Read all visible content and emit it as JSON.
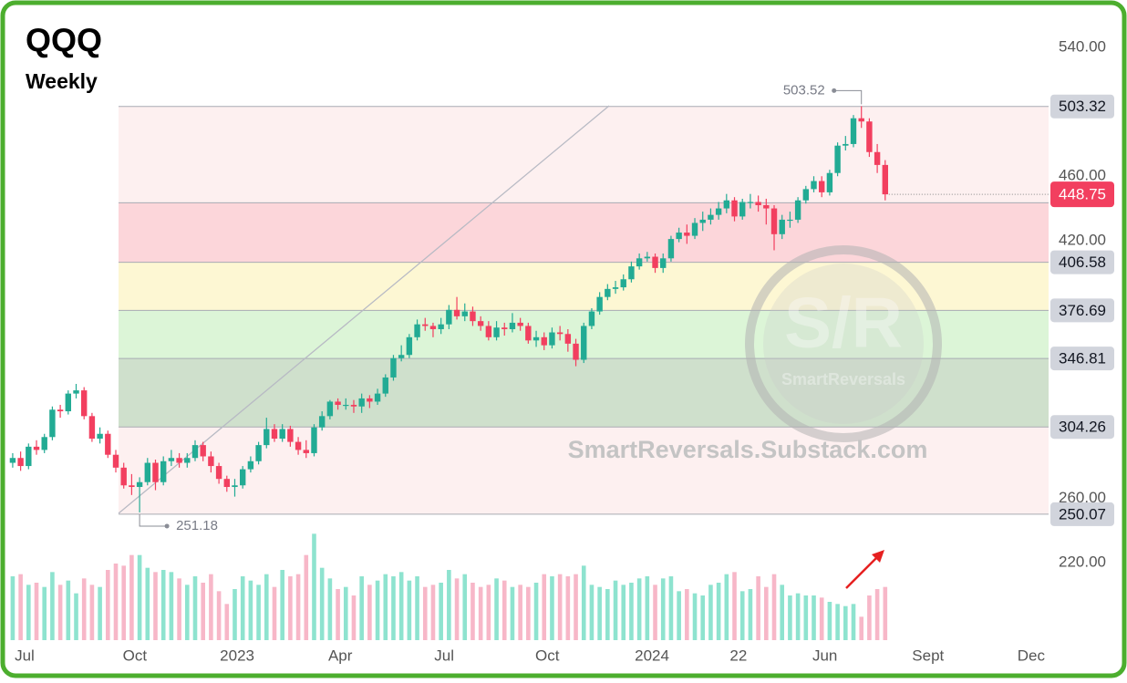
{
  "chart_data": {
    "type": "candlestick",
    "title": "QQQ",
    "subtitle": "Weekly",
    "watermark": {
      "logo": "S/R",
      "name": "SmartReversals",
      "site": "SmartReversals.Substack.com"
    },
    "open": [
      282,
      285,
      280,
      292,
      290,
      298,
      315,
      314,
      325,
      327,
      311,
      297,
      300,
      287,
      279,
      268,
      267,
      270,
      282,
      270,
      283,
      285,
      282,
      285,
      293,
      286,
      280,
      272,
      267,
      268,
      278,
      283,
      293,
      303,
      297,
      303,
      295,
      290,
      288,
      304,
      311,
      320,
      318,
      318,
      317,
      322,
      320,
      325,
      335,
      347,
      349,
      360,
      368,
      367,
      365,
      368,
      377,
      373,
      376,
      370,
      367,
      360,
      366,
      365,
      369,
      367,
      358,
      360,
      355,
      363,
      362,
      356,
      346,
      367,
      376,
      385,
      390,
      391,
      396,
      404,
      409,
      410,
      403,
      409,
      421,
      425,
      423,
      431,
      433,
      436,
      440,
      445,
      435,
      444,
      444,
      442,
      440,
      424,
      433,
      433,
      445,
      452,
      457,
      450,
      462,
      479,
      480,
      496,
      494,
      475,
      467
    ],
    "high": [
      288,
      289,
      294,
      296,
      300,
      317,
      318,
      327,
      331,
      329,
      313,
      304,
      302,
      290,
      282,
      275,
      273,
      285,
      284,
      286,
      290,
      288,
      288,
      296,
      295,
      289,
      282,
      274,
      272,
      280,
      286,
      295,
      310,
      306,
      306,
      305,
      298,
      296,
      306,
      314,
      321,
      322,
      322,
      321,
      325,
      324,
      328,
      337,
      349,
      355,
      362,
      371,
      372,
      369,
      372,
      380,
      385,
      381,
      379,
      373,
      370,
      370,
      369,
      375,
      372,
      369,
      364,
      363,
      366,
      367,
      365,
      359,
      369,
      378,
      388,
      393,
      395,
      399,
      407,
      412,
      413,
      412,
      412,
      423,
      428,
      430,
      434,
      438,
      440,
      444,
      449,
      447,
      446,
      449,
      448,
      446,
      442,
      436,
      438,
      447,
      454,
      460,
      460,
      464,
      481,
      485,
      498,
      503.52,
      496,
      480,
      470
    ],
    "low": [
      279,
      277,
      278,
      287,
      288,
      296,
      310,
      312,
      322,
      309,
      295,
      294,
      285,
      276,
      266,
      262,
      251.18,
      268,
      265,
      268,
      280,
      279,
      279,
      283,
      283,
      276,
      269,
      264,
      261,
      266,
      276,
      281,
      291,
      295,
      295,
      292,
      287,
      285,
      286,
      302,
      309,
      315,
      315,
      313,
      313,
      316,
      318,
      323,
      333,
      345,
      347,
      358,
      364,
      360,
      362,
      365,
      371,
      370,
      367,
      364,
      358,
      358,
      361,
      363,
      364,
      356,
      354,
      352,
      353,
      358,
      351,
      342,
      344,
      365,
      374,
      383,
      387,
      389,
      394,
      402,
      407,
      400,
      400,
      407,
      419,
      418,
      421,
      426,
      430,
      433,
      437,
      432,
      433,
      440,
      438,
      430,
      414,
      421,
      428,
      431,
      443,
      450,
      447,
      448,
      460,
      476,
      478,
      490,
      472,
      462,
      445
    ],
    "close": [
      285,
      280,
      292,
      290,
      298,
      315,
      314,
      325,
      327,
      311,
      297,
      300,
      287,
      279,
      268,
      267,
      270,
      282,
      270,
      283,
      285,
      282,
      285,
      293,
      286,
      280,
      272,
      267,
      268,
      278,
      283,
      293,
      303,
      297,
      303,
      295,
      290,
      288,
      304,
      311,
      320,
      318,
      318,
      317,
      322,
      320,
      325,
      335,
      347,
      349,
      360,
      368,
      367,
      365,
      368,
      377,
      373,
      376,
      370,
      367,
      360,
      366,
      365,
      369,
      367,
      358,
      360,
      355,
      363,
      362,
      356,
      346,
      367,
      376,
      385,
      390,
      391,
      396,
      404,
      409,
      410,
      403,
      409,
      421,
      425,
      423,
      431,
      433,
      436,
      440,
      445,
      435,
      444,
      444,
      442,
      440,
      424,
      433,
      433,
      445,
      452,
      457,
      450,
      462,
      479,
      480,
      496,
      494,
      475,
      467,
      448.75
    ],
    "volume": [
      300,
      310,
      260,
      270,
      250,
      320,
      260,
      280,
      220,
      290,
      260,
      250,
      330,
      360,
      350,
      400,
      400,
      340,
      320,
      330,
      320,
      290,
      260,
      300,
      270,
      310,
      230,
      170,
      240,
      300,
      280,
      260,
      310,
      250,
      330,
      300,
      310,
      400,
      500,
      340,
      290,
      240,
      250,
      210,
      300,
      260,
      280,
      310,
      300,
      320,
      280,
      300,
      250,
      260,
      270,
      330,
      290,
      310,
      270,
      250,
      260,
      290,
      280,
      250,
      260,
      250,
      270,
      310,
      300,
      310,
      300,
      310,
      350,
      260,
      250,
      240,
      280,
      260,
      270,
      290,
      300,
      260,
      290,
      300,
      230,
      240,
      220,
      210,
      260,
      270,
      310,
      320,
      230,
      240,
      300,
      250,
      310,
      260,
      210,
      220,
      210,
      210,
      200,
      180,
      170,
      160,
      170,
      110,
      210,
      240,
      250
    ],
    "vlim": [
      0,
      600
    ],
    "up_color": "#22ab94",
    "down_color": "#f23f5f",
    "vol_up_color": "#8ee3cf",
    "vol_down_color": "#f7b7c8",
    "last_price_color": "#f23f5f",
    "xlim": [
      -1.6,
      130.6
    ],
    "xticks": [
      {
        "value": 1.5,
        "label": "Jul"
      },
      {
        "value": 15.4,
        "label": "Oct"
      },
      {
        "value": 28.3,
        "label": "2023"
      },
      {
        "value": 41.3,
        "label": "Apr"
      },
      {
        "value": 54.4,
        "label": "Jul"
      },
      {
        "value": 67.4,
        "label": "Oct"
      },
      {
        "value": 80.6,
        "label": "2024"
      },
      {
        "value": 91.5,
        "label": "22"
      },
      {
        "value": 102.4,
        "label": "Jun"
      },
      {
        "value": 115.4,
        "label": "Sept"
      },
      {
        "value": 128.4,
        "label": "Dec"
      }
    ],
    "ylim": [
      220,
      540
    ],
    "yticks": [
      {
        "value": 540,
        "label": "540.00"
      },
      {
        "value": 460,
        "label": "460.00"
      },
      {
        "value": 420,
        "label": "420.00"
      },
      {
        "value": 260,
        "label": "260.00"
      },
      {
        "value": 220,
        "label": "220.00"
      }
    ],
    "levels": [
      {
        "value": 503.32,
        "label": "503.32"
      },
      443.5,
      {
        "value": 406.58,
        "label": "406.58"
      },
      {
        "value": 376.69,
        "label": "376.69"
      },
      {
        "value": 346.81,
        "label": "346.81"
      },
      {
        "value": 304.26,
        "label": "304.26"
      },
      {
        "value": 250.07,
        "label": "250.07"
      }
    ],
    "level_colors": [
      "#fdf0f0",
      "#fcd6da",
      "#fdf7d3",
      "#dcf5d7",
      "#cfe0cc",
      "#fdf0f0"
    ],
    "high_label": 503.52,
    "low_label": 251.18
  }
}
